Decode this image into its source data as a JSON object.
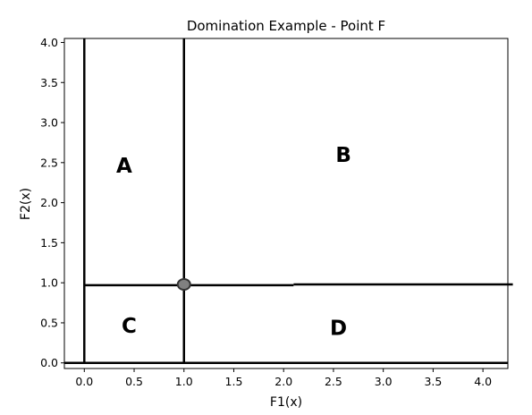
{
  "chart_data": {
    "type": "line",
    "title": "Domination Example - Point F",
    "xlabel": "F1(x)",
    "ylabel": "F2(x)",
    "xlim": [
      -0.2,
      4.25
    ],
    "ylim": [
      -0.07,
      4.05
    ],
    "x_ticks": [
      "0.0",
      "0.5",
      "1.0",
      "1.5",
      "2.0",
      "2.5",
      "3.0",
      "3.5",
      "4.0"
    ],
    "y_ticks": [
      "0.0",
      "0.5",
      "1.0",
      "1.5",
      "2.0",
      "2.5",
      "3.0",
      "3.5",
      "4.0"
    ],
    "grid": false,
    "lines": [
      {
        "orientation": "vertical",
        "x": 0.0,
        "y_range": [
          0.0,
          4.05
        ],
        "color": "#000000"
      },
      {
        "orientation": "vertical",
        "x": 1.0,
        "y_range": [
          0.0,
          4.05
        ],
        "color": "#000000"
      },
      {
        "orientation": "horizontal",
        "y": 0.0,
        "x_range": [
          -0.2,
          4.25
        ],
        "color": "#000000"
      },
      {
        "orientation": "horizontal",
        "y": 0.97,
        "x_range": [
          0.0,
          2.1
        ],
        "color": "#000000"
      },
      {
        "orientation": "horizontal",
        "y": 0.98,
        "x_range": [
          2.1,
          4.3
        ],
        "color": "#000000"
      }
    ],
    "points": [
      {
        "x": 1.0,
        "y": 0.98,
        "fill": "#808080",
        "stroke": "#333333"
      }
    ],
    "annotations": [
      {
        "text": "A",
        "x": 0.4,
        "y": 2.45
      },
      {
        "text": "B",
        "x": 2.6,
        "y": 2.58
      },
      {
        "text": "C",
        "x": 0.45,
        "y": 0.45
      },
      {
        "text": "D",
        "x": 2.55,
        "y": 0.42
      }
    ]
  }
}
